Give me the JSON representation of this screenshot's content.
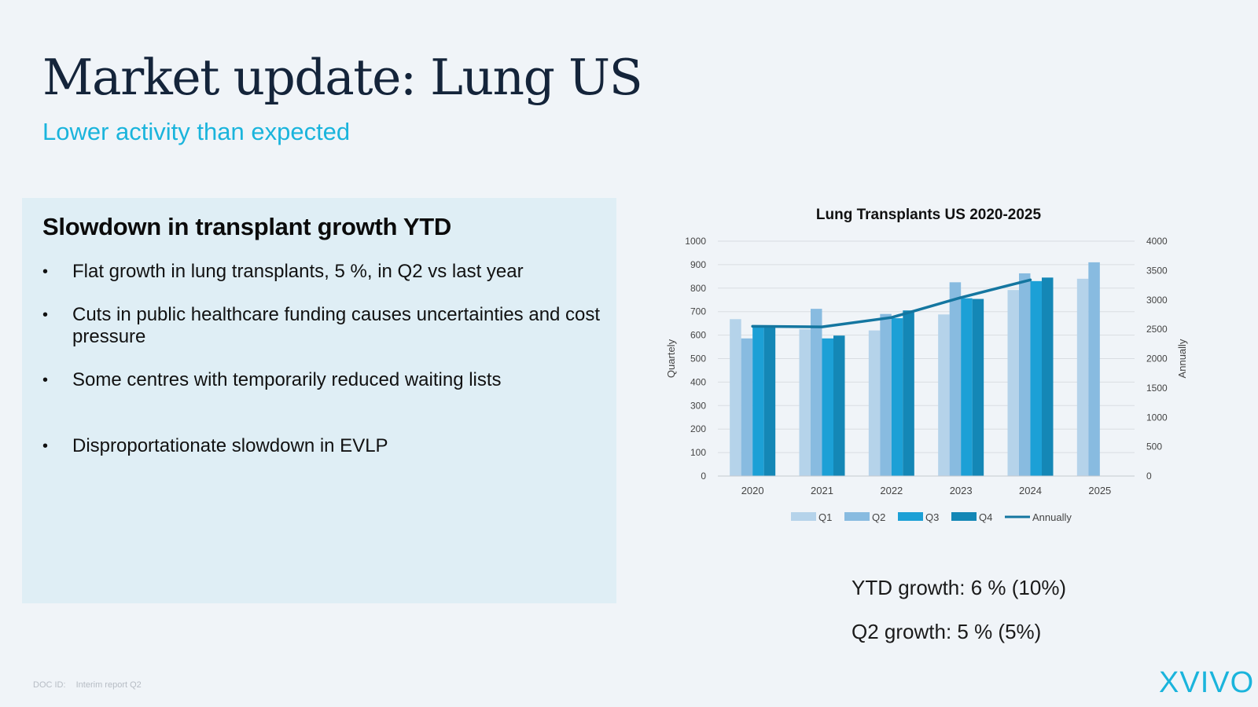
{
  "page": {
    "title": "Market update: Lung US",
    "subtitle": "Lower activity than expected"
  },
  "panel": {
    "heading": "Slowdown in transplant growth YTD",
    "bullet_glyph": "•",
    "bullets": [
      "Flat growth in lung transplants, 5 %, in Q2 vs last year",
      "Cuts in public healthcare funding causes uncertainties and cost pressure",
      "Some centres with temporarily reduced waiting lists",
      "Disproportationate slowdown in EVLP"
    ]
  },
  "kpis": {
    "ytd": "YTD growth: 6 % (10%)",
    "q2": "Q2 growth: 5 % (5%)"
  },
  "footer": {
    "doc_id_label": "DOC ID:",
    "doc_id_value": "Interim report Q2",
    "logo_text": "XVIVO"
  },
  "colors": {
    "accent": "#1ab4dc",
    "title": "#14243a",
    "panel_bg": "#dfeef5",
    "q1": "#b5d3ea",
    "q2": "#88bbe0",
    "q3": "#1ca0d6",
    "q4": "#1487b6",
    "annually": "#1476a0"
  },
  "chart_data": {
    "type": "bar",
    "title": "Lung Transplants US 2020-2025",
    "categories": [
      "2020",
      "2021",
      "2022",
      "2023",
      "2024",
      "2025"
    ],
    "ylabel": "Quartely",
    "y2label": "Annually",
    "ylim": [
      0,
      1000
    ],
    "y2lim": [
      0,
      4000
    ],
    "yticks": [
      0,
      100,
      200,
      300,
      400,
      500,
      600,
      700,
      800,
      900,
      1000
    ],
    "y2ticks": [
      0,
      500,
      1000,
      1500,
      2000,
      2500,
      3000,
      3500,
      4000
    ],
    "grid": true,
    "legend_position": "bottom",
    "series": [
      {
        "name": "Q1",
        "values": [
          668,
          625,
          620,
          688,
          792,
          840
        ]
      },
      {
        "name": "Q2",
        "values": [
          586,
          712,
          690,
          825,
          863,
          910
        ]
      },
      {
        "name": "Q3",
        "values": [
          640,
          586,
          672,
          757,
          830,
          null
        ]
      },
      {
        "name": "Q4",
        "values": [
          636,
          598,
          705,
          754,
          845,
          null
        ]
      },
      {
        "name": "Annually",
        "type": "line",
        "axis": "right",
        "values": [
          2550,
          2540,
          2700,
          3040,
          3340,
          null
        ]
      }
    ]
  }
}
